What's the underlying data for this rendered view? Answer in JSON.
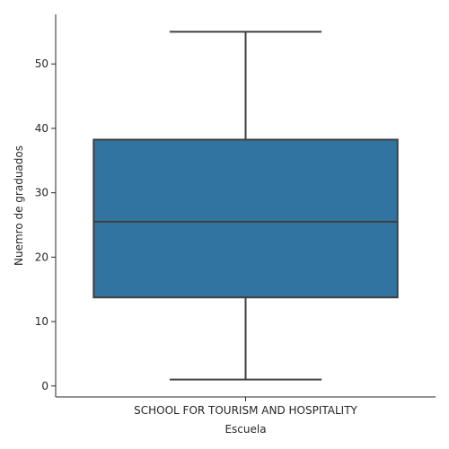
{
  "chart_data": {
    "type": "box",
    "xlabel": "Escuela",
    "ylabel": "Nuemro de graduados",
    "categories": [
      "SCHOOL FOR TOURISM AND HOSPITALITY"
    ],
    "boxes": [
      {
        "category": "SCHOOL FOR TOURISM AND HOSPITALITY",
        "whisker_low": 1,
        "q1": 13.75,
        "median": 25.5,
        "q3": 38.25,
        "whisker_high": 55
      }
    ],
    "ylim": [
      -1.7,
      57.7
    ],
    "yticks": [
      0,
      10,
      20,
      30,
      40,
      50
    ],
    "grid": false,
    "colors": {
      "box_fill": "#3274a1",
      "lines": "#3f3f3f",
      "axis": "#262626"
    }
  }
}
